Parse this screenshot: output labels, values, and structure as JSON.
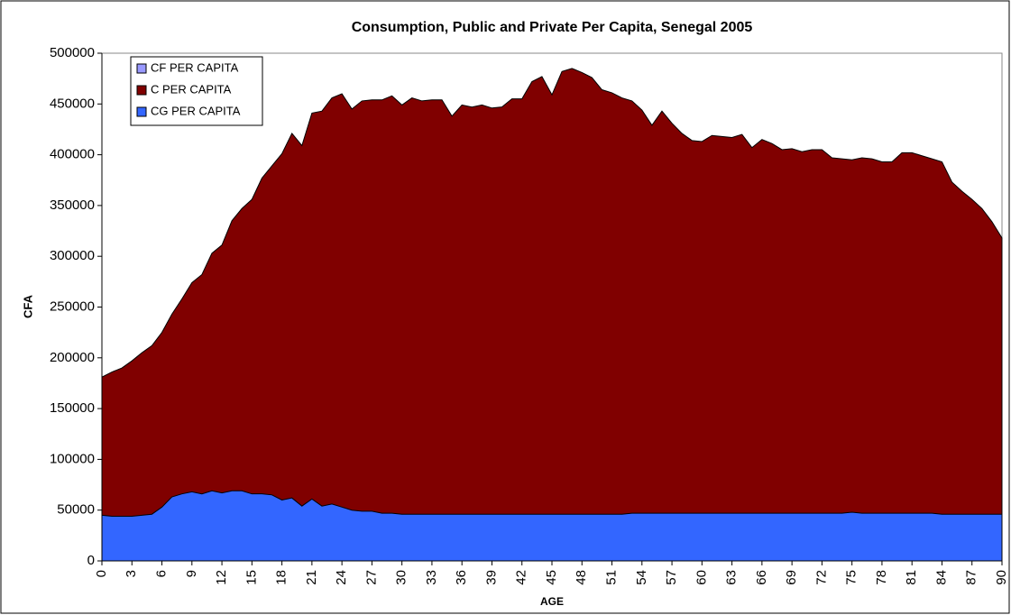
{
  "chart_data": {
    "type": "area",
    "title": "Consumption, Public and Private Per Capita, Senegal 2005",
    "x_label": "AGE",
    "y_label": "CFA",
    "x": [
      0,
      1,
      2,
      3,
      4,
      5,
      6,
      7,
      8,
      9,
      10,
      11,
      12,
      13,
      14,
      15,
      16,
      17,
      18,
      19,
      20,
      21,
      22,
      23,
      24,
      25,
      26,
      27,
      28,
      29,
      30,
      31,
      32,
      33,
      34,
      35,
      36,
      37,
      38,
      39,
      40,
      41,
      42,
      43,
      44,
      45,
      46,
      47,
      48,
      49,
      50,
      51,
      52,
      53,
      54,
      55,
      56,
      57,
      58,
      59,
      60,
      61,
      62,
      63,
      64,
      65,
      66,
      67,
      68,
      69,
      70,
      71,
      72,
      73,
      74,
      75,
      76,
      77,
      78,
      79,
      80,
      81,
      82,
      83,
      84,
      85,
      86,
      87,
      88,
      89,
      90
    ],
    "series": [
      {
        "name": "CF  PER CAPITA",
        "color": "#9999ff",
        "values": [
          null,
          null,
          null,
          null,
          null,
          null,
          null,
          null,
          null,
          null,
          null,
          null,
          null,
          null,
          null,
          null,
          null,
          null,
          null,
          null,
          null,
          null,
          null,
          null,
          null,
          null,
          null,
          null,
          null,
          null,
          null,
          null,
          null,
          null,
          null,
          null,
          null,
          null,
          null,
          null,
          null,
          null,
          null,
          null,
          null,
          null,
          null,
          null,
          null,
          null,
          null,
          null,
          null,
          null,
          null,
          null,
          null,
          null,
          null,
          null,
          null,
          null,
          null,
          null,
          null,
          null,
          null,
          null,
          null,
          null,
          null,
          null,
          null,
          null,
          null,
          null,
          null,
          null,
          null,
          null,
          null,
          null,
          null,
          null,
          null,
          null,
          null,
          null,
          null,
          null,
          null
        ]
      },
      {
        "name": "C PER CAPITA",
        "color": "#800000",
        "values": [
          181000,
          186000,
          190000,
          197000,
          205000,
          212000,
          225000,
          243000,
          258000,
          274000,
          282000,
          303000,
          311000,
          335000,
          347000,
          356000,
          377000,
          389000,
          401000,
          421000,
          409000,
          441000,
          443000,
          456000,
          460000,
          445000,
          453000,
          454000,
          454000,
          458000,
          449000,
          456000,
          453000,
          454000,
          454000,
          438000,
          449000,
          447000,
          449000,
          446000,
          447000,
          455000,
          455000,
          472000,
          477000,
          459000,
          482000,
          485000,
          481000,
          476000,
          464000,
          461000,
          456000,
          453000,
          444000,
          429000,
          443000,
          431000,
          421000,
          414000,
          413000,
          419000,
          418000,
          417000,
          420000,
          407000,
          415000,
          411000,
          405000,
          406000,
          403000,
          405000,
          405000,
          397000,
          396000,
          395000,
          397000,
          396000,
          393000,
          393000,
          402000,
          402000,
          399000,
          396000,
          393000,
          373000,
          364000,
          356000,
          347000,
          334000,
          318000
        ]
      },
      {
        "name": "CG PER CAPITA",
        "color": "#3366ff",
        "values": [
          45000,
          44000,
          44000,
          44000,
          45000,
          46000,
          53000,
          63000,
          66000,
          68000,
          66000,
          69000,
          67000,
          69000,
          69000,
          66000,
          66000,
          65000,
          60000,
          62000,
          54000,
          61000,
          54000,
          56000,
          53000,
          50000,
          49000,
          49000,
          47000,
          47000,
          46000,
          46000,
          46000,
          46000,
          46000,
          46000,
          46000,
          46000,
          46000,
          46000,
          46000,
          46000,
          46000,
          46000,
          46000,
          46000,
          46000,
          46000,
          46000,
          46000,
          46000,
          46000,
          46000,
          47000,
          47000,
          47000,
          47000,
          47000,
          47000,
          47000,
          47000,
          47000,
          47000,
          47000,
          47000,
          47000,
          47000,
          47000,
          47000,
          47000,
          47000,
          47000,
          47000,
          47000,
          47000,
          48000,
          47000,
          47000,
          47000,
          47000,
          47000,
          47000,
          47000,
          47000,
          46000,
          46000,
          46000,
          46000,
          46000,
          46000,
          46000
        ]
      }
    ],
    "xlim": [
      0,
      90
    ],
    "xticks": [
      0,
      3,
      6,
      9,
      12,
      15,
      18,
      21,
      24,
      27,
      30,
      33,
      36,
      39,
      42,
      45,
      48,
      51,
      54,
      57,
      60,
      63,
      66,
      69,
      72,
      75,
      78,
      81,
      84,
      87,
      90
    ],
    "ylim": [
      0,
      500000
    ],
    "yticks": [
      0,
      50000,
      100000,
      150000,
      200000,
      250000,
      300000,
      350000,
      400000,
      450000,
      500000
    ],
    "legend": "top-left"
  }
}
